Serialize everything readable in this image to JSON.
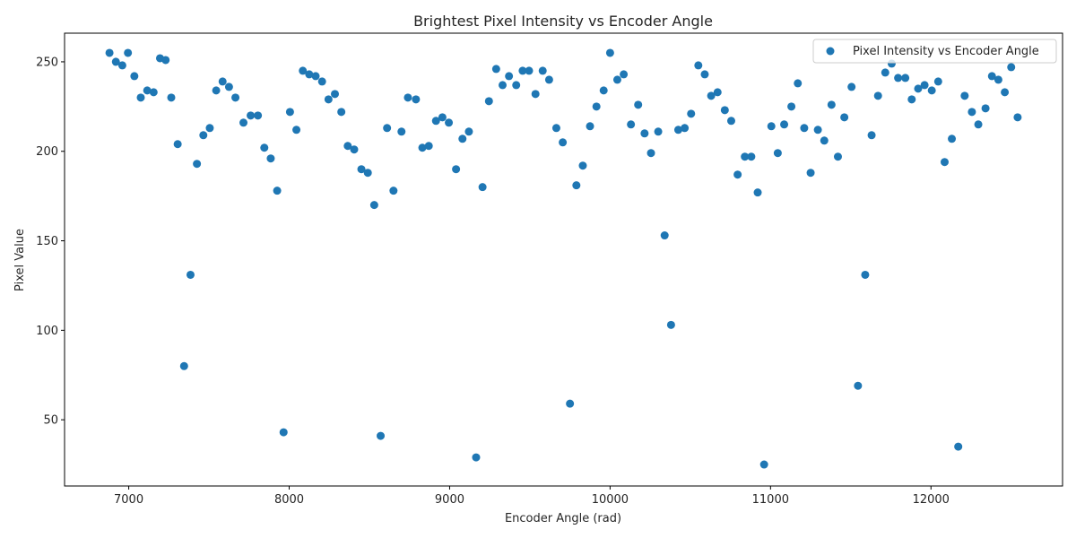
{
  "chart_data": {
    "type": "scatter",
    "title": "Brightest Pixel Intensity vs Encoder Angle",
    "xlabel": "Encoder Angle (rad)",
    "ylabel": "Pixel Value",
    "xlim": [
      6600,
      12820
    ],
    "ylim": [
      13,
      266
    ],
    "xticks": [
      7000,
      8000,
      9000,
      10000,
      11000,
      12000
    ],
    "yticks": [
      50,
      100,
      150,
      200,
      250
    ],
    "grid": false,
    "legend_position": "top-right",
    "colors": {
      "series": "#1f77b4",
      "axes": "#000000",
      "text": "#262626",
      "legend_border": "#cccccc"
    },
    "series": [
      {
        "name": "Pixel Intensity vs Encoder Angle",
        "points": [
          [
            6880,
            255
          ],
          [
            6920,
            250
          ],
          [
            6960,
            248
          ],
          [
            6995,
            255
          ],
          [
            7035,
            242
          ],
          [
            7075,
            230
          ],
          [
            7115,
            234
          ],
          [
            7155,
            233
          ],
          [
            7195,
            252
          ],
          [
            7230,
            251
          ],
          [
            7265,
            230
          ],
          [
            7305,
            204
          ],
          [
            7345,
            80
          ],
          [
            7385,
            131
          ],
          [
            7425,
            193
          ],
          [
            7465,
            209
          ],
          [
            7505,
            213
          ],
          [
            7545,
            234
          ],
          [
            7585,
            239
          ],
          [
            7625,
            236
          ],
          [
            7665,
            230
          ],
          [
            7715,
            216
          ],
          [
            7760,
            220
          ],
          [
            7805,
            220
          ],
          [
            7845,
            202
          ],
          [
            7885,
            196
          ],
          [
            7925,
            178
          ],
          [
            7965,
            43
          ],
          [
            8005,
            222
          ],
          [
            8045,
            212
          ],
          [
            8085,
            245
          ],
          [
            8125,
            243
          ],
          [
            8165,
            242
          ],
          [
            8205,
            239
          ],
          [
            8245,
            229
          ],
          [
            8285,
            232
          ],
          [
            8325,
            222
          ],
          [
            8365,
            203
          ],
          [
            8405,
            201
          ],
          [
            8450,
            190
          ],
          [
            8490,
            188
          ],
          [
            8530,
            170
          ],
          [
            8570,
            41
          ],
          [
            8610,
            213
          ],
          [
            8650,
            178
          ],
          [
            8700,
            211
          ],
          [
            8740,
            230
          ],
          [
            8790,
            229
          ],
          [
            8830,
            202
          ],
          [
            8870,
            203
          ],
          [
            8915,
            217
          ],
          [
            8955,
            219
          ],
          [
            8995,
            216
          ],
          [
            9040,
            190
          ],
          [
            9080,
            207
          ],
          [
            9120,
            211
          ],
          [
            9165,
            29
          ],
          [
            9205,
            180
          ],
          [
            9245,
            228
          ],
          [
            9290,
            246
          ],
          [
            9330,
            237
          ],
          [
            9370,
            242
          ],
          [
            9415,
            237
          ],
          [
            9455,
            245
          ],
          [
            9495,
            245
          ],
          [
            9535,
            232
          ],
          [
            9580,
            245
          ],
          [
            9620,
            240
          ],
          [
            9665,
            213
          ],
          [
            9705,
            205
          ],
          [
            9750,
            59
          ],
          [
            9790,
            181
          ],
          [
            9830,
            192
          ],
          [
            9875,
            214
          ],
          [
            9915,
            225
          ],
          [
            9960,
            234
          ],
          [
            10000,
            255
          ],
          [
            10045,
            240
          ],
          [
            10085,
            243
          ],
          [
            10130,
            215
          ],
          [
            10175,
            226
          ],
          [
            10215,
            210
          ],
          [
            10255,
            199
          ],
          [
            10300,
            211
          ],
          [
            10340,
            153
          ],
          [
            10380,
            103
          ],
          [
            10425,
            212
          ],
          [
            10465,
            213
          ],
          [
            10505,
            221
          ],
          [
            10550,
            248
          ],
          [
            10590,
            243
          ],
          [
            10630,
            231
          ],
          [
            10670,
            233
          ],
          [
            10715,
            223
          ],
          [
            10755,
            217
          ],
          [
            10795,
            187
          ],
          [
            10840,
            197
          ],
          [
            10880,
            197
          ],
          [
            10920,
            177
          ],
          [
            10960,
            25
          ],
          [
            11005,
            214
          ],
          [
            11045,
            199
          ],
          [
            11085,
            215
          ],
          [
            11130,
            225
          ],
          [
            11170,
            238
          ],
          [
            11210,
            213
          ],
          [
            11250,
            188
          ],
          [
            11295,
            212
          ],
          [
            11335,
            206
          ],
          [
            11380,
            226
          ],
          [
            11420,
            197
          ],
          [
            11460,
            219
          ],
          [
            11505,
            236
          ],
          [
            11545,
            69
          ],
          [
            11590,
            131
          ],
          [
            11630,
            209
          ],
          [
            11670,
            231
          ],
          [
            11715,
            244
          ],
          [
            11755,
            249
          ],
          [
            11795,
            241
          ],
          [
            11840,
            241
          ],
          [
            11880,
            229
          ],
          [
            11920,
            235
          ],
          [
            11960,
            237
          ],
          [
            12005,
            234
          ],
          [
            12045,
            239
          ],
          [
            12085,
            194
          ],
          [
            12130,
            207
          ],
          [
            12170,
            35
          ],
          [
            12210,
            231
          ],
          [
            12255,
            222
          ],
          [
            12295,
            215
          ],
          [
            12340,
            224
          ],
          [
            12380,
            242
          ],
          [
            12420,
            240
          ],
          [
            12460,
            233
          ],
          [
            12500,
            247
          ],
          [
            12540,
            219
          ]
        ]
      }
    ]
  }
}
